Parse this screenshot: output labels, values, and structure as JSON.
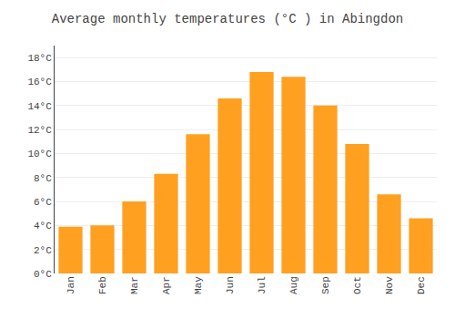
{
  "chart_data": {
    "type": "bar",
    "title": "Average monthly temperatures (°C ) in Abingdon",
    "categories": [
      "Jan",
      "Feb",
      "Mar",
      "Apr",
      "May",
      "Jun",
      "Jul",
      "Aug",
      "Sep",
      "Oct",
      "Nov",
      "Dec"
    ],
    "values": [
      3.9,
      4.0,
      6.0,
      8.3,
      11.6,
      14.6,
      16.8,
      16.4,
      14.0,
      10.8,
      6.6,
      4.6
    ],
    "color": "#FFA020",
    "ylim": [
      0,
      19
    ],
    "yticks": [
      {
        "value": 0,
        "label": "0°C"
      },
      {
        "value": 2,
        "label": "2°C"
      },
      {
        "value": 4,
        "label": "4°C"
      },
      {
        "value": 6,
        "label": "6°C"
      },
      {
        "value": 8,
        "label": "8°C"
      },
      {
        "value": 10,
        "label": "10°C"
      },
      {
        "value": 12,
        "label": "12°C"
      },
      {
        "value": 14,
        "label": "14°C"
      },
      {
        "value": 16,
        "label": "16°C"
      },
      {
        "value": 18,
        "label": "18°C"
      }
    ],
    "grid": true
  }
}
